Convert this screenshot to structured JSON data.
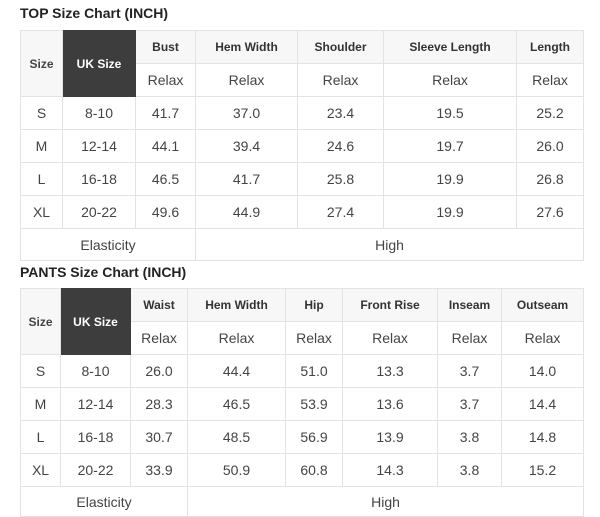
{
  "top": {
    "title": "TOP Size Chart (INCH)",
    "size_label": "Size",
    "uk_label": "UK Size",
    "columns": [
      "Bust",
      "Hem Width",
      "Shoulder",
      "Sleeve Length",
      "Length"
    ],
    "sub": "Relax",
    "rows": [
      [
        "S",
        "8-10",
        "41.7",
        "37.0",
        "23.4",
        "19.5",
        "25.2"
      ],
      [
        "M",
        "12-14",
        "44.1",
        "39.4",
        "24.6",
        "19.7",
        "26.0"
      ],
      [
        "L",
        "16-18",
        "46.5",
        "41.7",
        "25.8",
        "19.9",
        "26.8"
      ],
      [
        "XL",
        "20-22",
        "49.6",
        "44.9",
        "27.4",
        "19.9",
        "27.6"
      ]
    ],
    "elasticity_label": "Elasticity",
    "elasticity_value": "High"
  },
  "pants": {
    "title": "PANTS Size Chart (INCH)",
    "size_label": "Size",
    "uk_label": "UK Size",
    "columns": [
      "Waist",
      "Hem Width",
      "Hip",
      "Front Rise",
      "Inseam",
      "Outseam"
    ],
    "sub": "Relax",
    "rows": [
      [
        "S",
        "8-10",
        "26.0",
        "44.4",
        "51.0",
        "13.3",
        "3.7",
        "14.0"
      ],
      [
        "M",
        "12-14",
        "28.3",
        "46.5",
        "53.9",
        "13.6",
        "3.7",
        "14.4"
      ],
      [
        "L",
        "16-18",
        "30.7",
        "48.5",
        "56.9",
        "13.9",
        "3.8",
        "14.8"
      ],
      [
        "XL",
        "20-22",
        "33.9",
        "50.9",
        "60.8",
        "14.3",
        "3.8",
        "15.2"
      ]
    ],
    "elasticity_label": "Elasticity",
    "elasticity_value": "High"
  }
}
